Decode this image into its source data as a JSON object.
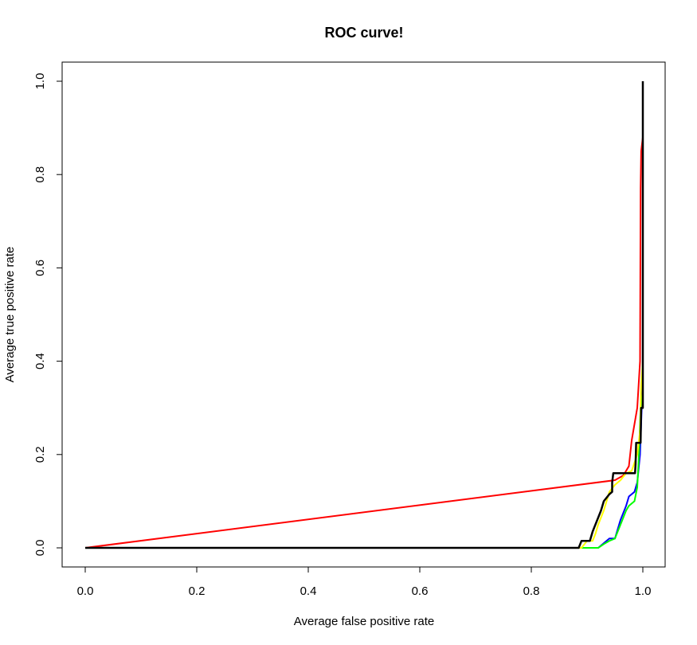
{
  "chart_data": {
    "type": "line",
    "title": "ROC curve!",
    "xlabel": "Average false positive rate",
    "ylabel": "Average true positive rate",
    "xlim": [
      0,
      1
    ],
    "ylim": [
      0,
      1
    ],
    "x_ticks": [
      0,
      0.2,
      0.4,
      0.6,
      0.8,
      1
    ],
    "x_tick_labels": [
      "0.0",
      "0.2",
      "0.4",
      "0.6",
      "0.8",
      "1.0"
    ],
    "y_ticks": [
      0,
      0.2,
      0.4,
      0.6,
      0.8,
      1
    ],
    "y_tick_labels": [
      "0.0",
      "0.2",
      "0.4",
      "0.6",
      "0.8",
      "1.0"
    ],
    "grid": false,
    "series": [
      {
        "color": "#ff0000",
        "points": [
          [
            0,
            0
          ],
          [
            0.95,
            0.145
          ],
          [
            0.965,
            0.155
          ],
          [
            0.975,
            0.175
          ],
          [
            0.98,
            0.23
          ],
          [
            0.99,
            0.3
          ],
          [
            0.995,
            0.4
          ],
          [
            0.996,
            0.77
          ],
          [
            0.997,
            0.85
          ],
          [
            1.0,
            0.88
          ]
        ]
      },
      {
        "color": "#0000ff",
        "points": [
          [
            0,
            0
          ],
          [
            0.89,
            0
          ],
          [
            0.9,
            0
          ],
          [
            0.92,
            0
          ],
          [
            0.93,
            0.01
          ],
          [
            0.94,
            0.02
          ],
          [
            0.95,
            0.02
          ],
          [
            0.96,
            0.06
          ],
          [
            0.97,
            0.09
          ],
          [
            0.975,
            0.11
          ],
          [
            0.985,
            0.12
          ],
          [
            0.99,
            0.14
          ],
          [
            0.995,
            0.2
          ],
          [
            0.998,
            0.3
          ],
          [
            1.0,
            0.35
          ]
        ]
      },
      {
        "color": "#00ff00",
        "points": [
          [
            0,
            0
          ],
          [
            0.89,
            0
          ],
          [
            0.92,
            0
          ],
          [
            0.93,
            0.008
          ],
          [
            0.94,
            0.015
          ],
          [
            0.95,
            0.02
          ],
          [
            0.96,
            0.05
          ],
          [
            0.97,
            0.08
          ],
          [
            0.975,
            0.09
          ],
          [
            0.985,
            0.1
          ],
          [
            0.99,
            0.13
          ],
          [
            0.993,
            0.2
          ],
          [
            0.996,
            0.3
          ],
          [
            1.0,
            0.33
          ]
        ]
      },
      {
        "color": "#ffff00",
        "points": [
          [
            0,
            0
          ],
          [
            0.89,
            0
          ],
          [
            0.9,
            0.015
          ],
          [
            0.91,
            0.015
          ],
          [
            0.915,
            0.03
          ],
          [
            0.92,
            0.05
          ],
          [
            0.93,
            0.08
          ],
          [
            0.94,
            0.12
          ],
          [
            0.95,
            0.135
          ],
          [
            0.96,
            0.145
          ],
          [
            0.97,
            0.16
          ],
          [
            0.98,
            0.165
          ],
          [
            0.99,
            0.2
          ],
          [
            0.995,
            0.25
          ],
          [
            0.997,
            0.35
          ],
          [
            1.0,
            0.4
          ]
        ]
      },
      {
        "color": "#000000",
        "points": [
          [
            0,
            0
          ],
          [
            0.885,
            0
          ],
          [
            0.89,
            0.015
          ],
          [
            0.9,
            0.015
          ],
          [
            0.905,
            0.015
          ],
          [
            0.91,
            0.035
          ],
          [
            0.915,
            0.05
          ],
          [
            0.925,
            0.08
          ],
          [
            0.93,
            0.1
          ],
          [
            0.94,
            0.115
          ],
          [
            0.945,
            0.12
          ],
          [
            0.945,
            0.14
          ],
          [
            0.947,
            0.16
          ],
          [
            0.955,
            0.16
          ],
          [
            0.983,
            0.16
          ],
          [
            0.986,
            0.16
          ],
          [
            0.987,
            0.18
          ],
          [
            0.988,
            0.225
          ],
          [
            0.99,
            0.225
          ],
          [
            0.996,
            0.225
          ],
          [
            0.997,
            0.3
          ],
          [
            1.0,
            0.3
          ],
          [
            1.0,
            1.0
          ]
        ]
      }
    ]
  }
}
